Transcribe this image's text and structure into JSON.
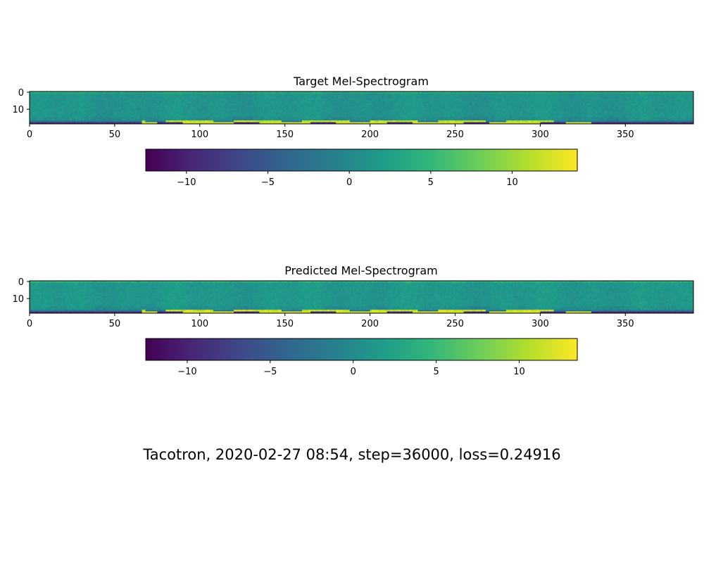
{
  "figure": {
    "suptitle": "Tacotron, 2020-02-27 08:54, step=36000, loss=0.24916"
  },
  "colormap": [
    "#440154",
    "#482878",
    "#3e4989",
    "#31688e",
    "#26828e",
    "#1f9e89",
    "#35b779",
    "#6ece58",
    "#b5de2b",
    "#fde725"
  ],
  "chart_data": [
    {
      "type": "heatmap",
      "title": "Target Mel-Spectrogram",
      "x_range": [
        0,
        390
      ],
      "y_range": [
        0,
        19
      ],
      "y_inverted": true,
      "x_ticks": [
        "0",
        "50",
        "100",
        "150",
        "200",
        "250",
        "300",
        "350"
      ],
      "y_ticks": [
        "0",
        "10"
      ],
      "colorbar": {
        "orientation": "horizontal",
        "range": [
          -12.5,
          14
        ],
        "ticks": [
          "−10",
          "−5",
          "0",
          "5",
          "10"
        ]
      }
    },
    {
      "type": "heatmap",
      "title": "Predicted Mel-Spectrogram",
      "x_range": [
        0,
        390
      ],
      "y_range": [
        0,
        19
      ],
      "y_inverted": true,
      "x_ticks": [
        "0",
        "50",
        "100",
        "150",
        "200",
        "250",
        "300",
        "350"
      ],
      "y_ticks": [
        "0",
        "10"
      ],
      "colorbar": {
        "orientation": "horizontal",
        "range": [
          -12.5,
          13.5
        ],
        "ticks": [
          "−10",
          "−5",
          "0",
          "5",
          "10"
        ]
      }
    }
  ]
}
